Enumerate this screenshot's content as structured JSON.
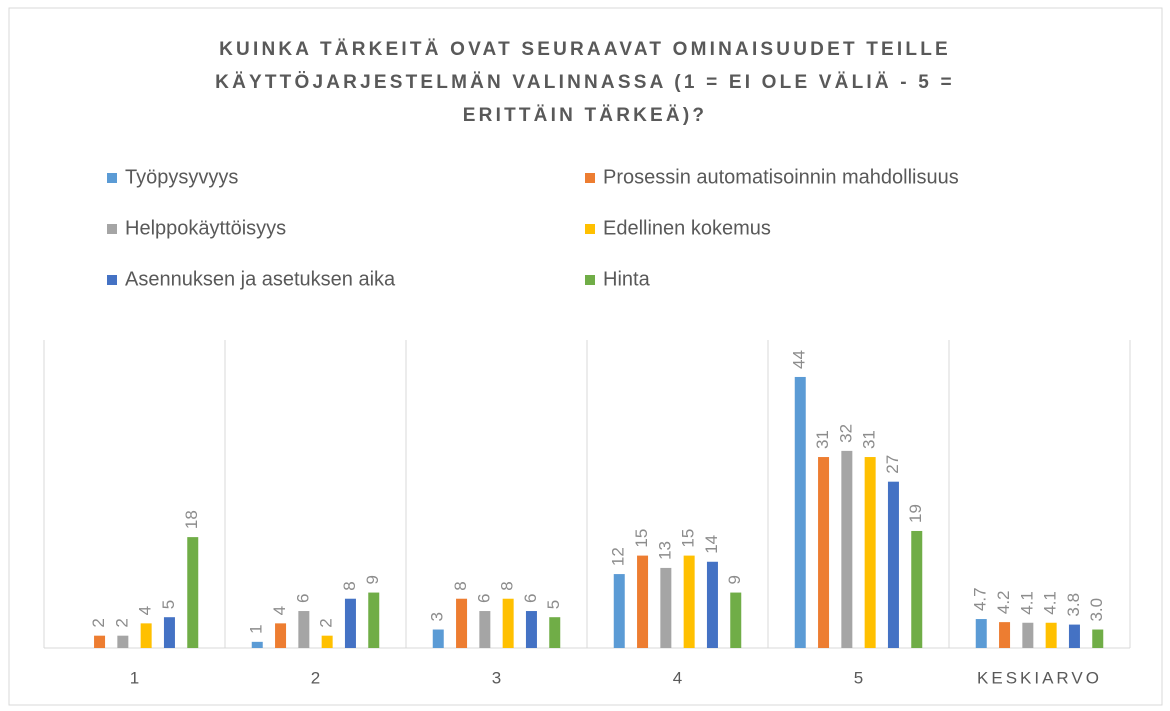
{
  "chart_data": {
    "type": "bar",
    "title": "KUINKA TÄRKEITÄ OVAT SEURAAVAT OMINAISUUDET TEILLE KÄYTTÖJARJESTELMÄN VALINNASSA (1 = EI OLE VÄLIÄ - 5 = ERITTÄIN TÄRKEÄ)?",
    "categories": [
      "1",
      "2",
      "3",
      "4",
      "5",
      "KESKIARVO"
    ],
    "series": [
      {
        "name": "Työpysyvyys",
        "color": "#5b9bd5",
        "values": [
          null,
          1,
          3,
          12,
          44,
          4.7
        ]
      },
      {
        "name": "Prosessin automatisoinnin mahdollisuus",
        "color": "#ed7d31",
        "values": [
          2,
          4,
          8,
          15,
          31,
          4.2
        ]
      },
      {
        "name": "Helppokäyttöisyys",
        "color": "#a5a5a5",
        "values": [
          2,
          6,
          6,
          13,
          32,
          4.1
        ]
      },
      {
        "name": "Edellinen kokemus",
        "color": "#ffc000",
        "values": [
          4,
          2,
          8,
          15,
          31,
          4.1
        ]
      },
      {
        "name": "Asennuksen ja asetuksen aika",
        "color": "#4472c4",
        "values": [
          5,
          8,
          6,
          14,
          27,
          3.8
        ]
      },
      {
        "name": "Hinta",
        "color": "#70ad47",
        "values": [
          18,
          9,
          5,
          9,
          19,
          3.0
        ],
        "value_labels": [
          "18",
          "9",
          "5",
          "9",
          "19",
          "3.0"
        ]
      }
    ],
    "ylim": [
      0,
      50
    ]
  }
}
